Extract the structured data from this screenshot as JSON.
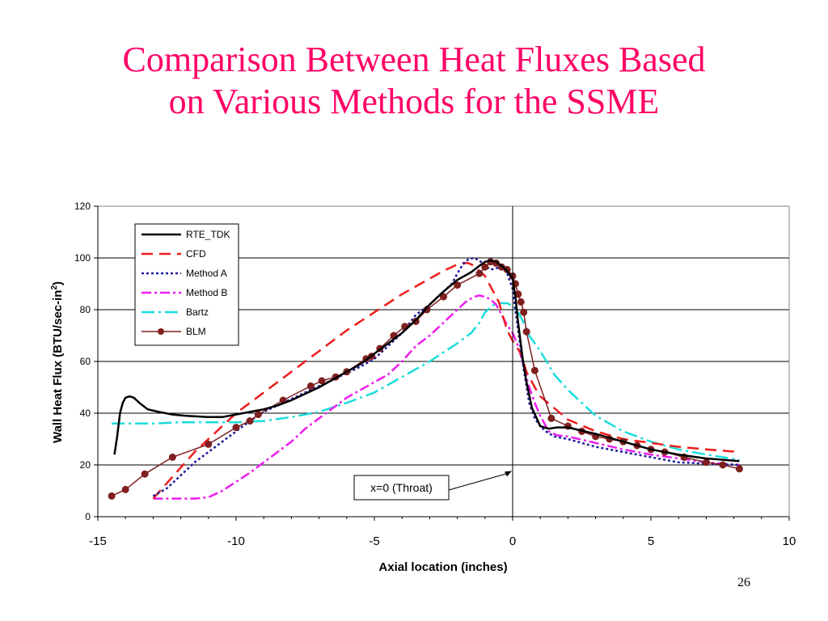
{
  "slide": {
    "title_line1": "Comparison Between Heat Fluxes Based",
    "title_line2": "on Various Methods for the SSME",
    "page_number": "26",
    "title_color": "#ff0066"
  },
  "chart_data": {
    "type": "line",
    "title": "",
    "xlabel": "Axial location (inches)",
    "ylabel_main": "Wall Heat Flux (BTU/sec-in",
    "ylabel_sup": "2",
    "ylabel_close": ")",
    "xlim": [
      -15,
      10
    ],
    "ylim": [
      0,
      120
    ],
    "x_ticks": [
      -15,
      -10,
      -5,
      0,
      5,
      10
    ],
    "x_tick_labels": [
      "-15",
      "-10",
      "-5",
      "0",
      "5",
      "10"
    ],
    "y_ticks": [
      0,
      20,
      40,
      60,
      80,
      100,
      120
    ],
    "y_tick_labels": [
      "0",
      "20",
      "40",
      "60",
      "80",
      "100",
      "120"
    ],
    "grid": "horizontal",
    "legend_position": "top-left",
    "throat_line_x": 0,
    "annotation": {
      "text": "x=0 (Throat)",
      "arrow_to": [
        0,
        18
      ]
    },
    "series": [
      {
        "name": "RTE_TDK",
        "color": "#000000",
        "dash": "solid",
        "markers": false,
        "x": [
          -14.4,
          -14.3,
          -14.2,
          -14.1,
          -14.0,
          -13.85,
          -13.7,
          -13.5,
          -13.2,
          -12.8,
          -12.3,
          -11.8,
          -11.0,
          -10.5,
          -10.0,
          -9.5,
          -9.0,
          -8.5,
          -8.0,
          -7.5,
          -7.0,
          -6.5,
          -6.0,
          -5.5,
          -5.0,
          -4.5,
          -4.0,
          -3.5,
          -3.0,
          -2.5,
          -2.0,
          -1.5,
          -1.2,
          -1.0,
          -0.8,
          -0.6,
          -0.4,
          -0.2,
          0.0,
          0.1,
          0.2,
          0.35,
          0.5,
          0.7,
          1.0,
          1.3,
          1.6,
          2.0,
          3.0,
          4.0,
          5.0,
          6.0,
          7.0,
          8.2
        ],
        "y": [
          24,
          31,
          40,
          44,
          46,
          46.5,
          46,
          44,
          41.5,
          40.5,
          39.5,
          39,
          38.5,
          38.5,
          39.5,
          40.5,
          41.5,
          43,
          45,
          47.5,
          50,
          53,
          56,
          59,
          63,
          67,
          71,
          76,
          82,
          87,
          91.5,
          94.5,
          97,
          98.5,
          99,
          98.5,
          97,
          95,
          92,
          85,
          75,
          62,
          52,
          42,
          35,
          34,
          34.5,
          34.5,
          32,
          29,
          26,
          24,
          22.5,
          21.5
        ]
      },
      {
        "name": "CFD",
        "color": "#ee1c1c",
        "dash": "14,8",
        "markers": false,
        "x": [
          -13.0,
          -12.5,
          -12.0,
          -11.5,
          -11.0,
          -10.5,
          -10.0,
          -9.0,
          -8.0,
          -7.0,
          -6.0,
          -5.0,
          -4.0,
          -3.0,
          -2.5,
          -2.2,
          -2.0,
          -1.8,
          -1.6,
          -1.4,
          -1.2,
          -1.0,
          -0.5,
          -0.2,
          0.0,
          0.3,
          0.5,
          0.8,
          1.0,
          1.5,
          2.0,
          3.0,
          4.0,
          5.0,
          6.0,
          7.0,
          8.2
        ],
        "y": [
          7,
          13,
          19,
          25,
          30,
          35,
          40,
          48,
          56,
          64,
          72,
          79,
          86,
          92,
          95,
          96.5,
          97.5,
          98,
          98,
          97,
          95,
          93,
          83,
          72,
          68,
          63,
          56,
          50,
          46.5,
          42,
          37.5,
          33,
          30,
          28.5,
          27,
          26,
          25
        ]
      },
      {
        "name": "Method A",
        "color": "#1c1c9c",
        "dash": "3,3",
        "markers": false,
        "x": [
          -13.0,
          -12.5,
          -12.0,
          -11.5,
          -11.0,
          -10.5,
          -10.0,
          -9.5,
          -9.0,
          -8.5,
          -8.0,
          -7.5,
          -7.0,
          -6.5,
          -6.0,
          -5.5,
          -5.0,
          -4.5,
          -4.0,
          -3.5,
          -3.0,
          -2.5,
          -2.2,
          -2.0,
          -1.8,
          -1.6,
          -1.4,
          -1.2,
          -1.0,
          -0.8,
          -0.6,
          -0.4,
          -0.2,
          0.0,
          0.2,
          0.4,
          0.6,
          0.8,
          1.0,
          1.2,
          1.5,
          2.0,
          3.0,
          4.0,
          5.0,
          6.0,
          7.0,
          8.2
        ],
        "y": [
          8,
          11,
          16,
          21,
          25,
          29,
          33,
          37,
          40.5,
          43,
          45.5,
          48,
          50.5,
          53,
          55.5,
          58,
          61,
          66,
          71,
          78,
          82,
          87,
          90,
          94,
          97.5,
          99.5,
          100,
          99,
          97,
          95.5,
          96,
          96.5,
          94,
          88,
          72,
          57,
          44,
          38,
          35,
          33,
          31,
          30,
          27,
          25,
          23,
          21,
          20.5,
          20
        ]
      },
      {
        "name": "Method B",
        "color": "#ee1cee",
        "dash": "12,4,3,4",
        "markers": false,
        "x": [
          -13.0,
          -12.5,
          -12.0,
          -11.5,
          -11.0,
          -10.5,
          -10.0,
          -9.5,
          -9.0,
          -8.5,
          -8.0,
          -7.5,
          -7.0,
          -6.5,
          -6.0,
          -5.5,
          -5.0,
          -4.5,
          -4.0,
          -3.5,
          -3.0,
          -2.5,
          -2.0,
          -1.7,
          -1.4,
          -1.2,
          -1.0,
          -0.8,
          -0.6,
          -0.4,
          -0.2,
          0.0,
          0.2,
          0.4,
          0.6,
          0.8,
          1.0,
          1.3,
          1.6,
          2.0,
          3.0,
          4.0,
          5.0,
          6.0,
          7.0,
          8.2
        ],
        "y": [
          7,
          7,
          7,
          7,
          7.5,
          10,
          13.5,
          17,
          21,
          25,
          29,
          34,
          38,
          42,
          46,
          49,
          52,
          55,
          60,
          66,
          70,
          75,
          80,
          83,
          85,
          85.5,
          85,
          84,
          82,
          78,
          74,
          71,
          66,
          58,
          50,
          44,
          39,
          33,
          31.5,
          31,
          28.5,
          26,
          24,
          22.5,
          21,
          20
        ]
      },
      {
        "name": "Bartz",
        "color": "#1cdcdc",
        "dash": "16,5,3,5",
        "markers": false,
        "x": [
          -14.5,
          -14.0,
          -13.0,
          -12.0,
          -11.0,
          -10.0,
          -9.0,
          -8.0,
          -7.0,
          -6.0,
          -5.0,
          -4.0,
          -3.0,
          -2.0,
          -1.5,
          -1.2,
          -1.0,
          -0.8,
          -0.6,
          -0.4,
          -0.2,
          0.0,
          0.2,
          0.4,
          0.6,
          0.8,
          1.0,
          1.5,
          2.0,
          2.5,
          3.0,
          4.0,
          5.0,
          6.0,
          7.0,
          8.2
        ],
        "y": [
          36,
          36,
          36,
          36.5,
          36.5,
          36.5,
          37,
          38.5,
          40.5,
          44,
          48,
          54,
          60,
          67,
          71,
          75,
          79,
          81,
          82.5,
          82.5,
          82.5,
          81.5,
          79,
          75,
          70,
          67,
          64,
          55,
          49,
          44,
          39,
          33,
          29,
          26,
          24,
          22
        ]
      },
      {
        "name": "BLM",
        "color": "#7f1f1f",
        "dash": "solid",
        "markers": true,
        "x": [
          -14.5,
          -14.0,
          -13.3,
          -12.3,
          -11.0,
          -10.0,
          -9.5,
          -9.2,
          -8.3,
          -7.3,
          -6.9,
          -6.4,
          -6.0,
          -5.3,
          -5.1,
          -4.8,
          -4.3,
          -3.9,
          -3.5,
          -3.1,
          -2.5,
          -2.0,
          -1.2,
          -1.0,
          -0.8,
          -0.6,
          -0.4,
          -0.2,
          0.0,
          0.1,
          0.2,
          0.3,
          0.4,
          0.5,
          0.8,
          1.4,
          2.0,
          2.5,
          3.0,
          3.5,
          4.0,
          4.5,
          5.0,
          5.5,
          6.2,
          7.0,
          7.6,
          8.2
        ],
        "y": [
          8,
          10.5,
          16.5,
          23,
          28,
          34.5,
          37,
          39.5,
          45,
          50.5,
          52.5,
          54,
          56,
          61,
          62,
          65,
          70,
          73.5,
          75.5,
          80,
          85,
          89.5,
          94,
          96.5,
          98.5,
          98,
          96.5,
          95.5,
          93,
          90,
          86,
          83,
          79,
          71.5,
          56.5,
          38,
          35,
          33,
          31,
          30,
          29,
          27.5,
          26,
          25,
          23,
          21,
          20,
          18.5
        ]
      }
    ]
  }
}
